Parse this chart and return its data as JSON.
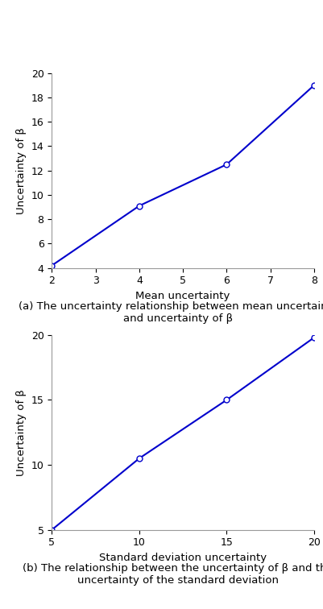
{
  "plot1": {
    "x": [
      2,
      4,
      6,
      8
    ],
    "y": [
      4.2,
      9.1,
      12.5,
      19.0
    ],
    "xlim": [
      2,
      8
    ],
    "ylim": [
      4,
      20
    ],
    "xticks": [
      2,
      3,
      4,
      5,
      6,
      7,
      8
    ],
    "yticks": [
      4,
      6,
      8,
      10,
      12,
      14,
      16,
      18,
      20
    ],
    "xlabel": "Mean uncertainty",
    "ylabel": "Uncertainty of β",
    "caption_line1": "(a) The uncertainty relationship between mean uncertainty",
    "caption_line2": "and uncertainty of β"
  },
  "plot2": {
    "x": [
      5,
      10,
      15,
      20
    ],
    "y": [
      5.0,
      10.5,
      15.0,
      19.8
    ],
    "xlim": [
      5,
      20
    ],
    "ylim": [
      5,
      20
    ],
    "xticks": [
      5,
      10,
      15,
      20
    ],
    "yticks": [
      5,
      10,
      15,
      20
    ],
    "xlabel": "Standard deviation uncertainty",
    "ylabel": "Uncertainty of β",
    "caption_line1": "(b) The relationship between the uncertainty of β and the",
    "caption_line2": "uncertainty of the standard deviation"
  },
  "line_color": "#0000cc",
  "marker": "o",
  "marker_facecolor": "white",
  "marker_edgecolor": "#0000cc",
  "marker_size": 5,
  "line_width": 1.5,
  "caption_fontsize": 9.5,
  "axis_label_fontsize": 9.5,
  "tick_fontsize": 9,
  "background_color": "#ffffff"
}
